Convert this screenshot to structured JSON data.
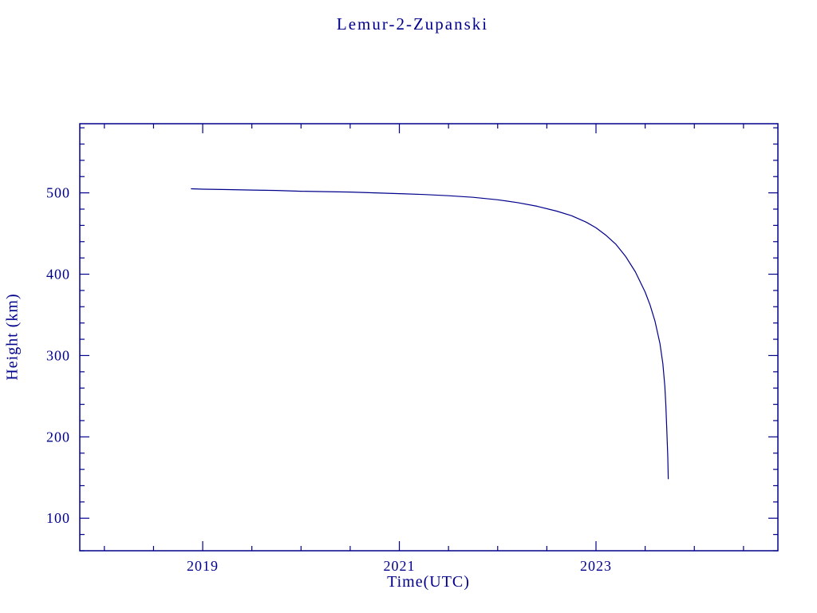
{
  "page": {
    "background": "#ffffff"
  },
  "chart_data": {
    "type": "line",
    "title": "Lemur-2-Zupanski",
    "xlabel": "Time(UTC)",
    "ylabel": "Height (km)",
    "color": "#00008b",
    "grid": false,
    "legend": "none",
    "xlim": [
      2017.75,
      2024.85
    ],
    "ylim": [
      60,
      585
    ],
    "x_major_ticks": [
      2019,
      2021,
      2023
    ],
    "x_minor_step": 0.5,
    "y_major_ticks": [
      100,
      200,
      300,
      400,
      500
    ],
    "y_minor_step": 20,
    "series": [
      {
        "name": "height",
        "points": [
          [
            2018.88,
            505
          ],
          [
            2019.0,
            504.5
          ],
          [
            2019.25,
            504
          ],
          [
            2019.5,
            503.5
          ],
          [
            2019.75,
            503
          ],
          [
            2020.0,
            502
          ],
          [
            2020.25,
            501.5
          ],
          [
            2020.5,
            501
          ],
          [
            2020.75,
            500
          ],
          [
            2021.0,
            499
          ],
          [
            2021.25,
            498
          ],
          [
            2021.5,
            496.5
          ],
          [
            2021.75,
            494.5
          ],
          [
            2022.0,
            491.5
          ],
          [
            2022.2,
            488
          ],
          [
            2022.4,
            483.5
          ],
          [
            2022.6,
            477.5
          ],
          [
            2022.75,
            472
          ],
          [
            2022.9,
            464
          ],
          [
            2023.0,
            457
          ],
          [
            2023.1,
            448
          ],
          [
            2023.2,
            437
          ],
          [
            2023.3,
            422
          ],
          [
            2023.4,
            403
          ],
          [
            2023.5,
            378
          ],
          [
            2023.55,
            362
          ],
          [
            2023.6,
            342
          ],
          [
            2023.65,
            315
          ],
          [
            2023.68,
            290
          ],
          [
            2023.7,
            262
          ],
          [
            2023.71,
            240
          ],
          [
            2023.72,
            210
          ],
          [
            2023.73,
            175
          ],
          [
            2023.735,
            148
          ]
        ]
      }
    ]
  }
}
